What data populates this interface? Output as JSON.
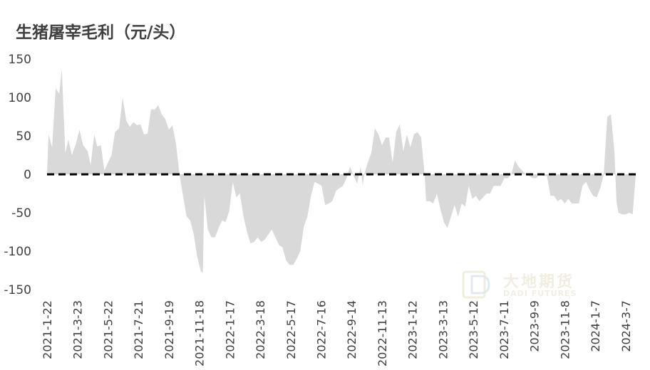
{
  "title": "生猪屠宰毛利（元/头）",
  "watermark": {
    "name_cn": "大地期货",
    "name_en": "DADI FUTURES"
  },
  "colors": {
    "area": "#d9d9d9",
    "zero_line": "#000000",
    "text": "#404040"
  },
  "chart_data": {
    "type": "area",
    "title": "生猪屠宰毛利（元/头）",
    "xlabel": "",
    "ylabel": "",
    "ylim": [
      -150,
      150
    ],
    "yticks": [
      150,
      100,
      50,
      0,
      -50,
      -100,
      -150
    ],
    "xticks": [
      "2021-1-22",
      "2021-3-23",
      "2021-5-22",
      "2021-7-21",
      "2021-9-19",
      "2021-11-18",
      "2022-1-17",
      "2022-3-18",
      "2022-5-17",
      "2022-7-16",
      "2022-9-14",
      "2022-11-13",
      "2023-1-12",
      "2023-3-13",
      "2023-5-12",
      "2023-7-11",
      "2023-9-9",
      "2023-11-8",
      "2024-1-7",
      "2024-3-7"
    ],
    "x_start": "2021-1-22",
    "x_end": "2024-3-27",
    "reference_line": {
      "y": 0,
      "style": "dashed"
    },
    "grid": false,
    "legend": "none",
    "series": [
      {
        "values": [
          [
            "2021-1-22",
            0
          ],
          [
            "2021-1-25",
            52
          ],
          [
            "2021-2-1",
            35
          ],
          [
            "2021-2-8",
            112
          ],
          [
            "2021-2-15",
            105
          ],
          [
            "2021-2-20",
            137
          ],
          [
            "2021-2-27",
            28
          ],
          [
            "2021-3-5",
            45
          ],
          [
            "2021-3-12",
            25
          ],
          [
            "2021-3-20",
            40
          ],
          [
            "2021-3-27",
            58
          ],
          [
            "2021-4-3",
            38
          ],
          [
            "2021-4-12",
            30
          ],
          [
            "2021-4-18",
            12
          ],
          [
            "2021-4-25",
            52
          ],
          [
            "2021-5-1",
            36
          ],
          [
            "2021-5-8",
            38
          ],
          [
            "2021-5-15",
            5
          ],
          [
            "2021-5-22",
            15
          ],
          [
            "2021-5-29",
            25
          ],
          [
            "2021-6-5",
            55
          ],
          [
            "2021-6-13",
            60
          ],
          [
            "2021-6-20",
            100
          ],
          [
            "2021-6-27",
            70
          ],
          [
            "2021-7-4",
            62
          ],
          [
            "2021-7-11",
            68
          ],
          [
            "2021-7-18",
            64
          ],
          [
            "2021-7-25",
            65
          ],
          [
            "2021-8-1",
            52
          ],
          [
            "2021-8-8",
            53
          ],
          [
            "2021-8-15",
            85
          ],
          [
            "2021-8-22",
            84
          ],
          [
            "2021-8-29",
            90
          ],
          [
            "2021-9-5",
            78
          ],
          [
            "2021-9-12",
            72
          ],
          [
            "2021-9-19",
            58
          ],
          [
            "2021-9-26",
            64
          ],
          [
            "2021-10-3",
            40
          ],
          [
            "2021-10-10",
            0
          ],
          [
            "2021-10-17",
            -28
          ],
          [
            "2021-10-24",
            -55
          ],
          [
            "2021-10-31",
            -60
          ],
          [
            "2021-11-7",
            -78
          ],
          [
            "2021-11-14",
            -108
          ],
          [
            "2021-11-21",
            -126
          ],
          [
            "2021-11-25",
            -128
          ],
          [
            "2021-11-28",
            -28
          ],
          [
            "2021-12-5",
            -72
          ],
          [
            "2021-12-12",
            -82
          ],
          [
            "2021-12-19",
            -82
          ],
          [
            "2021-12-26",
            -70
          ],
          [
            "2022-1-2",
            -60
          ],
          [
            "2022-1-9",
            -62
          ],
          [
            "2022-1-16",
            -48
          ],
          [
            "2022-1-23",
            -10
          ],
          [
            "2022-1-30",
            -30
          ],
          [
            "2022-2-6",
            -25
          ],
          [
            "2022-2-13",
            -55
          ],
          [
            "2022-2-20",
            -75
          ],
          [
            "2022-2-27",
            -90
          ],
          [
            "2022-3-6",
            -88
          ],
          [
            "2022-3-13",
            -82
          ],
          [
            "2022-3-20",
            -88
          ],
          [
            "2022-3-27",
            -85
          ],
          [
            "2022-4-3",
            -78
          ],
          [
            "2022-4-10",
            -72
          ],
          [
            "2022-4-17",
            -82
          ],
          [
            "2022-4-24",
            -92
          ],
          [
            "2022-5-1",
            -95
          ],
          [
            "2022-5-8",
            -112
          ],
          [
            "2022-5-15",
            -118
          ],
          [
            "2022-5-22",
            -118
          ],
          [
            "2022-5-29",
            -110
          ],
          [
            "2022-6-5",
            -100
          ],
          [
            "2022-6-12",
            -68
          ],
          [
            "2022-6-19",
            -55
          ],
          [
            "2022-6-26",
            -28
          ],
          [
            "2022-7-3",
            -10
          ],
          [
            "2022-7-10",
            -12
          ],
          [
            "2022-7-17",
            -15
          ],
          [
            "2022-7-24",
            -40
          ],
          [
            "2022-7-31",
            -38
          ],
          [
            "2022-8-7",
            -35
          ],
          [
            "2022-8-14",
            -22
          ],
          [
            "2022-8-21",
            -18
          ],
          [
            "2022-8-28",
            -15
          ],
          [
            "2022-9-4",
            -5
          ],
          [
            "2022-9-11",
            10
          ],
          [
            "2022-9-18",
            -2
          ],
          [
            "2022-9-25",
            -12
          ],
          [
            "2022-10-2",
            10
          ],
          [
            "2022-10-6",
            -15
          ],
          [
            "2022-10-9",
            0
          ],
          [
            "2022-10-16",
            15
          ],
          [
            "2022-10-23",
            28
          ],
          [
            "2022-10-30",
            60
          ],
          [
            "2022-11-6",
            52
          ],
          [
            "2022-11-13",
            38
          ],
          [
            "2022-11-20",
            48
          ],
          [
            "2022-11-27",
            48
          ],
          [
            "2022-12-4",
            15
          ],
          [
            "2022-12-11",
            55
          ],
          [
            "2022-12-18",
            65
          ],
          [
            "2022-12-25",
            30
          ],
          [
            "2023-1-1",
            52
          ],
          [
            "2023-1-8",
            35
          ],
          [
            "2023-1-15",
            52
          ],
          [
            "2023-1-22",
            55
          ],
          [
            "2023-1-29",
            48
          ],
          [
            "2023-2-5",
            0
          ],
          [
            "2023-2-8",
            -35
          ],
          [
            "2023-2-15",
            -35
          ],
          [
            "2023-2-22",
            -38
          ],
          [
            "2023-3-1",
            -25
          ],
          [
            "2023-3-8",
            -45
          ],
          [
            "2023-3-15",
            -62
          ],
          [
            "2023-3-22",
            -70
          ],
          [
            "2023-3-29",
            -55
          ],
          [
            "2023-4-5",
            -40
          ],
          [
            "2023-4-12",
            -55
          ],
          [
            "2023-4-19",
            -38
          ],
          [
            "2023-4-26",
            -42
          ],
          [
            "2023-5-3",
            -15
          ],
          [
            "2023-5-10",
            -32
          ],
          [
            "2023-5-17",
            -28
          ],
          [
            "2023-5-24",
            -35
          ],
          [
            "2023-5-31",
            -30
          ],
          [
            "2023-6-7",
            -25
          ],
          [
            "2023-6-14",
            -25
          ],
          [
            "2023-6-21",
            -15
          ],
          [
            "2023-6-28",
            -15
          ],
          [
            "2023-7-5",
            -15
          ],
          [
            "2023-7-12",
            -5
          ],
          [
            "2023-7-19",
            -5
          ],
          [
            "2023-7-26",
            0
          ],
          [
            "2023-8-2",
            18
          ],
          [
            "2023-8-9",
            10
          ],
          [
            "2023-8-16",
            5
          ],
          [
            "2023-8-23",
            0
          ],
          [
            "2023-8-30",
            -2
          ],
          [
            "2023-9-6",
            -5
          ],
          [
            "2023-9-13",
            -5
          ],
          [
            "2023-9-20",
            0
          ],
          [
            "2023-9-27",
            -2
          ],
          [
            "2023-10-4",
            -2
          ],
          [
            "2023-10-11",
            -28
          ],
          [
            "2023-10-18",
            -28
          ],
          [
            "2023-10-25",
            -35
          ],
          [
            "2023-11-1",
            -32
          ],
          [
            "2023-11-8",
            -38
          ],
          [
            "2023-11-15",
            -32
          ],
          [
            "2023-11-22",
            -38
          ],
          [
            "2023-11-29",
            -38
          ],
          [
            "2023-12-6",
            -38
          ],
          [
            "2023-12-13",
            -15
          ],
          [
            "2023-12-20",
            -10
          ],
          [
            "2023-12-27",
            -20
          ],
          [
            "2024-1-3",
            -28
          ],
          [
            "2024-1-10",
            -30
          ],
          [
            "2024-1-17",
            -18
          ],
          [
            "2024-1-24",
            0
          ],
          [
            "2024-1-31",
            75
          ],
          [
            "2024-2-7",
            78
          ],
          [
            "2024-2-14",
            30
          ],
          [
            "2024-2-18",
            -35
          ],
          [
            "2024-2-22",
            -50
          ],
          [
            "2024-2-29",
            -52
          ],
          [
            "2024-3-7",
            -52
          ],
          [
            "2024-3-14",
            -50
          ],
          [
            "2024-3-21",
            -52
          ],
          [
            "2024-3-27",
            0
          ]
        ]
      }
    ]
  }
}
